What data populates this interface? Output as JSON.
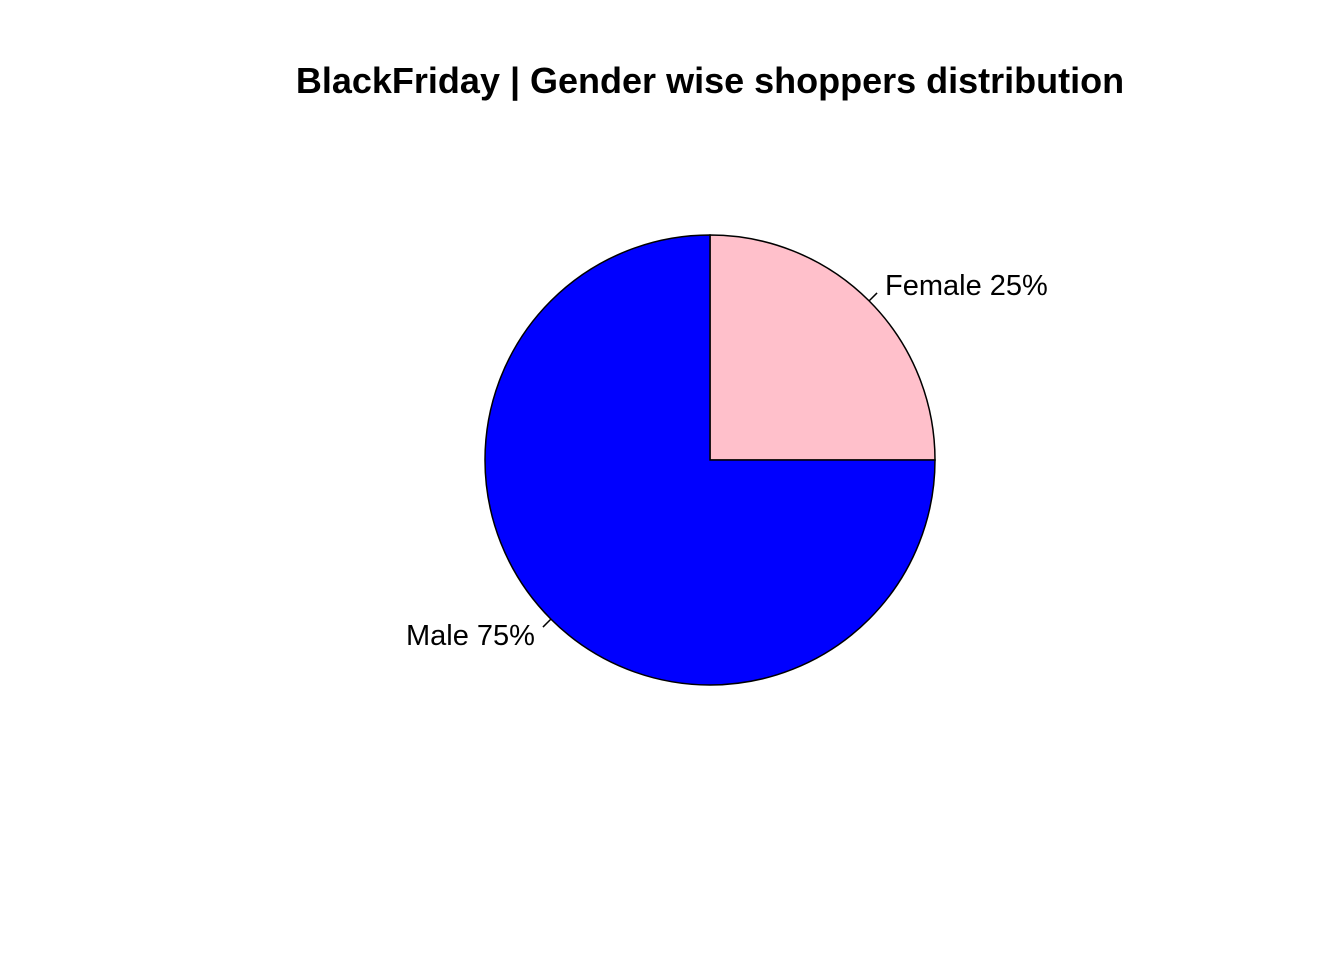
{
  "chart_data": {
    "type": "pie",
    "title": "BlackFriday | Gender wise shoppers distribution",
    "slices": [
      {
        "label": "Female 25%",
        "category": "Female",
        "value": 25,
        "color": "#FFC0CB"
      },
      {
        "label": "Male 75%",
        "category": "Male",
        "value": 75,
        "color": "#0000FF"
      }
    ],
    "start": "3 o'clock",
    "direction": "counterclockwise",
    "border_color": "#000000",
    "legend": "none"
  }
}
